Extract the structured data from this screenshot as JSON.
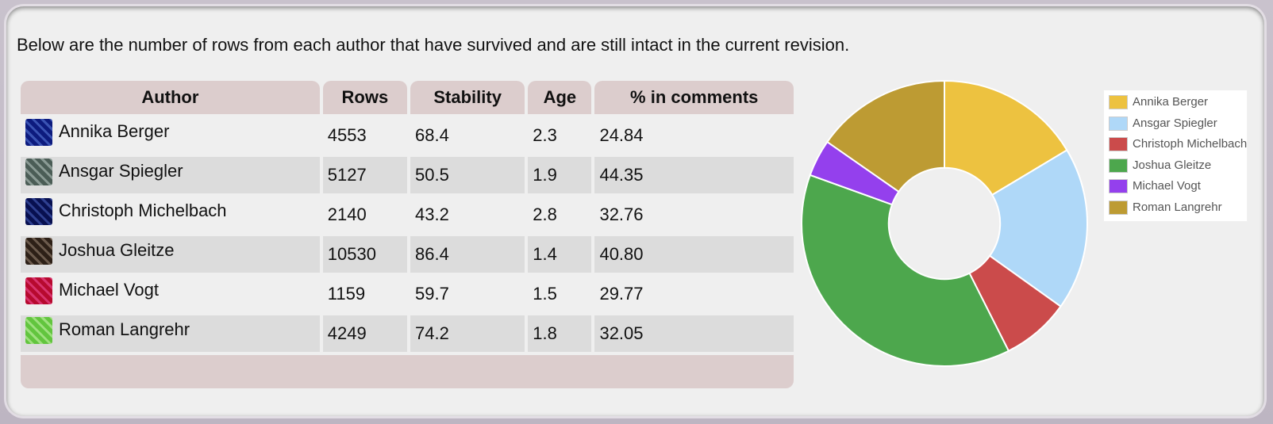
{
  "intro_text": "Below are the number of rows from each author that have survived and are still intact in the current revision.",
  "table": {
    "headers": [
      "Author",
      "Rows",
      "Stability",
      "Age",
      "% in comments"
    ],
    "rows": [
      {
        "author": "Annika Berger",
        "rows": "4553",
        "stability": "68.4",
        "age": "2.3",
        "comments": "24.84",
        "avatar_color": "#3a53b3"
      },
      {
        "author": "Ansgar Spiegler",
        "rows": "5127",
        "stability": "50.5",
        "age": "1.9",
        "comments": "44.35",
        "avatar_color": "#8a9a94"
      },
      {
        "author": "Christoph Michelbach",
        "rows": "2140",
        "stability": "43.2",
        "age": "2.8",
        "comments": "32.76",
        "avatar_color": "#2e3f8f"
      },
      {
        "author": "Joshua Gleitze",
        "rows": "10530",
        "stability": "86.4",
        "age": "1.4",
        "comments": "40.80",
        "avatar_color": "#6b5a4c"
      },
      {
        "author": "Michael Vogt",
        "rows": "1159",
        "stability": "59.7",
        "age": "1.5",
        "comments": "29.77",
        "avatar_color": "#d8336d"
      },
      {
        "author": "Roman Langrehr",
        "rows": "4249",
        "stability": "74.2",
        "age": "1.8",
        "comments": "32.05",
        "avatar_color": "#9ee07e"
      }
    ]
  },
  "chart_data": {
    "type": "pie",
    "categories": [
      "Annika Berger",
      "Ansgar Spiegler",
      "Christoph Michelbach",
      "Joshua Gleitze",
      "Michael Vogt",
      "Roman Langrehr"
    ],
    "values": [
      4553,
      5127,
      2140,
      10530,
      1159,
      4249
    ],
    "colors": [
      "#edc240",
      "#afd8f8",
      "#cb4b4b",
      "#4da74d",
      "#9440ed",
      "#bd9b33"
    ],
    "legend_position": "top-right",
    "inner_radius_ratio": 0.39
  }
}
